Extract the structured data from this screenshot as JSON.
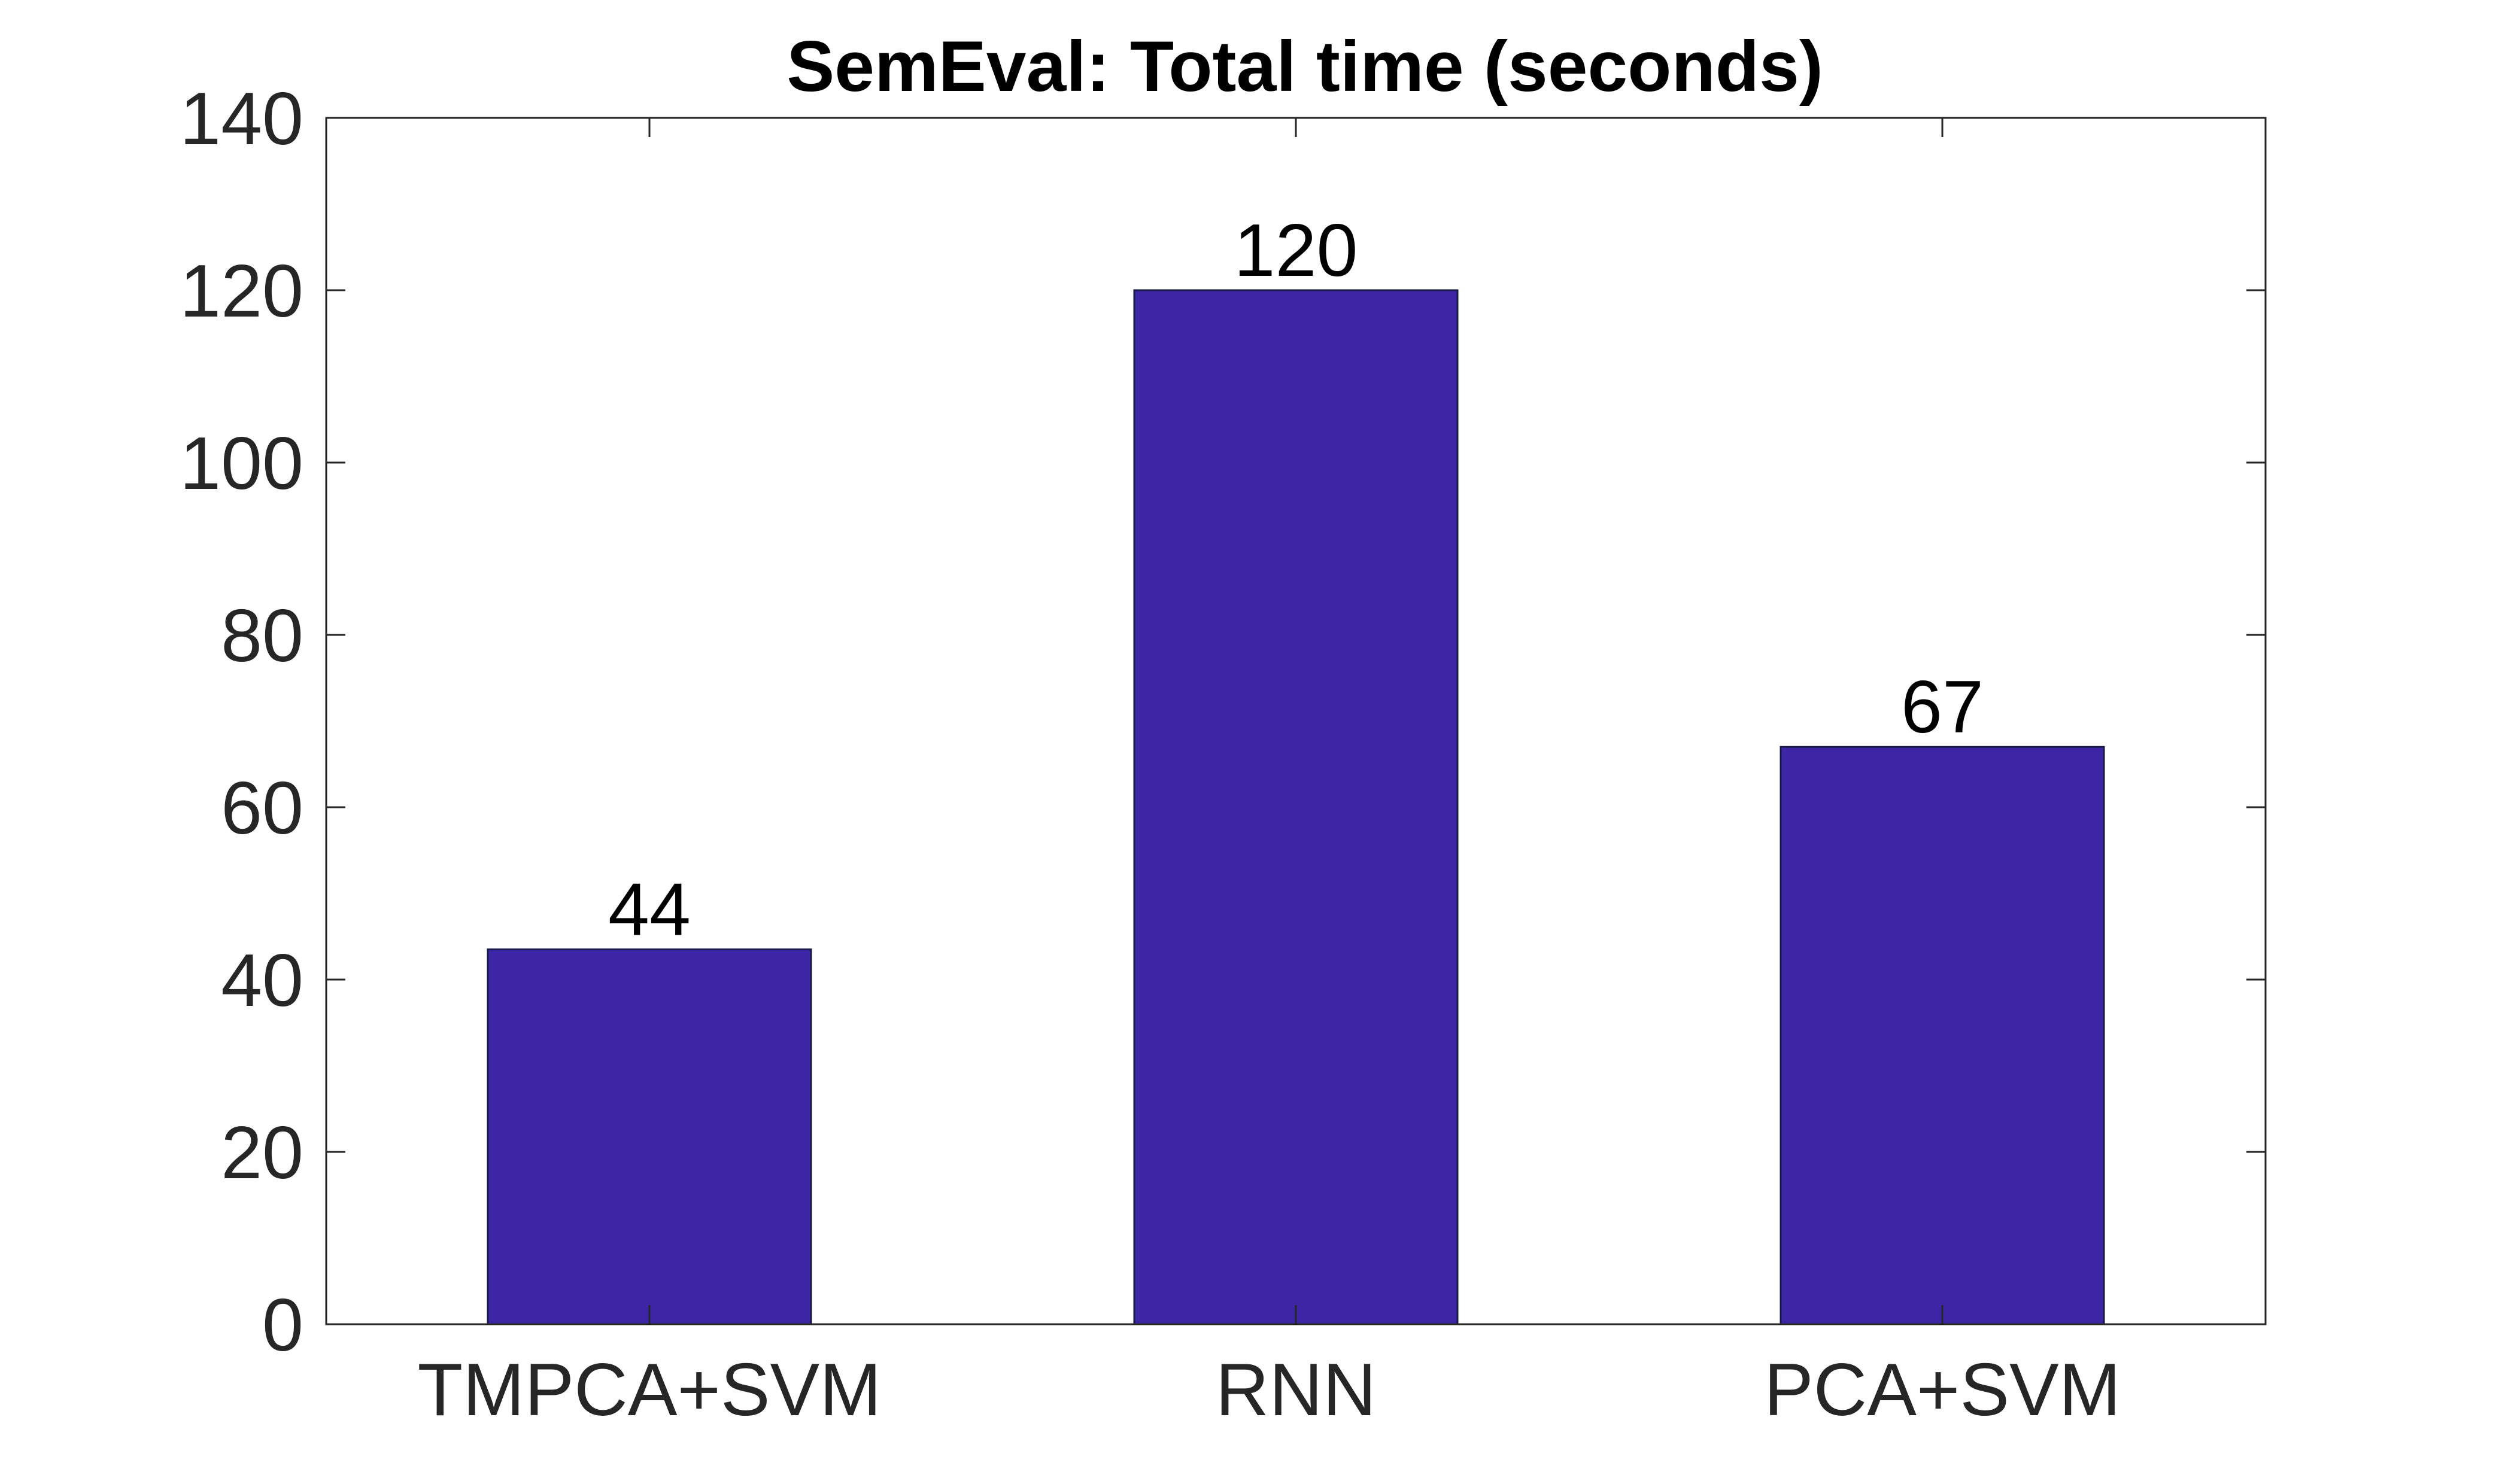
{
  "chart_data": {
    "type": "bar",
    "title": "SemEval: Total time (seconds)",
    "xlabel": "",
    "ylabel": "",
    "categories": [
      "TMPCA+SVM",
      "RNN",
      "PCA+SVM"
    ],
    "values": [
      43.5,
      120,
      67
    ],
    "data_labels": [
      "44",
      "120",
      "67"
    ],
    "ylim": [
      0,
      140
    ],
    "yticks": [
      0,
      20,
      40,
      60,
      80,
      100,
      120,
      140
    ],
    "ytick_labels": [
      "0",
      "20",
      "40",
      "60",
      "80",
      "100",
      "120",
      "140"
    ],
    "grid": false,
    "legend": "none",
    "bar_color": "#3c26a6",
    "bar_edge_color": "#1a1a4a",
    "axis_color": "#262626"
  }
}
